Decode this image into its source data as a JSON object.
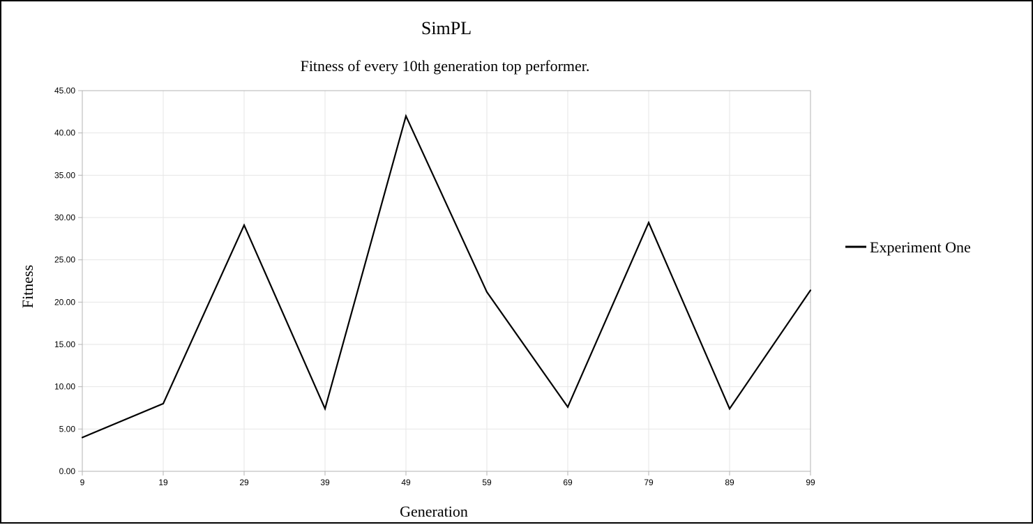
{
  "chart_data": {
    "type": "line",
    "title": "SimPL",
    "subtitle": "Fitness of every 10th generation top performer.",
    "xlabel": "Generation",
    "ylabel": "Fitness",
    "categories": [
      "9",
      "19",
      "29",
      "39",
      "49",
      "59",
      "69",
      "79",
      "89",
      "99"
    ],
    "series": [
      {
        "name": "Experiment One",
        "color": "#000000",
        "values": [
          4.0,
          8.0,
          29.1,
          7.4,
          42.0,
          21.2,
          7.6,
          29.4,
          7.4,
          21.4
        ]
      }
    ],
    "ylim": [
      0,
      45
    ],
    "y_ticks": [
      "0.00",
      "5.00",
      "10.00",
      "15.00",
      "20.00",
      "25.00",
      "30.00",
      "35.00",
      "40.00",
      "45.00"
    ],
    "grid": true,
    "legend": "right"
  }
}
